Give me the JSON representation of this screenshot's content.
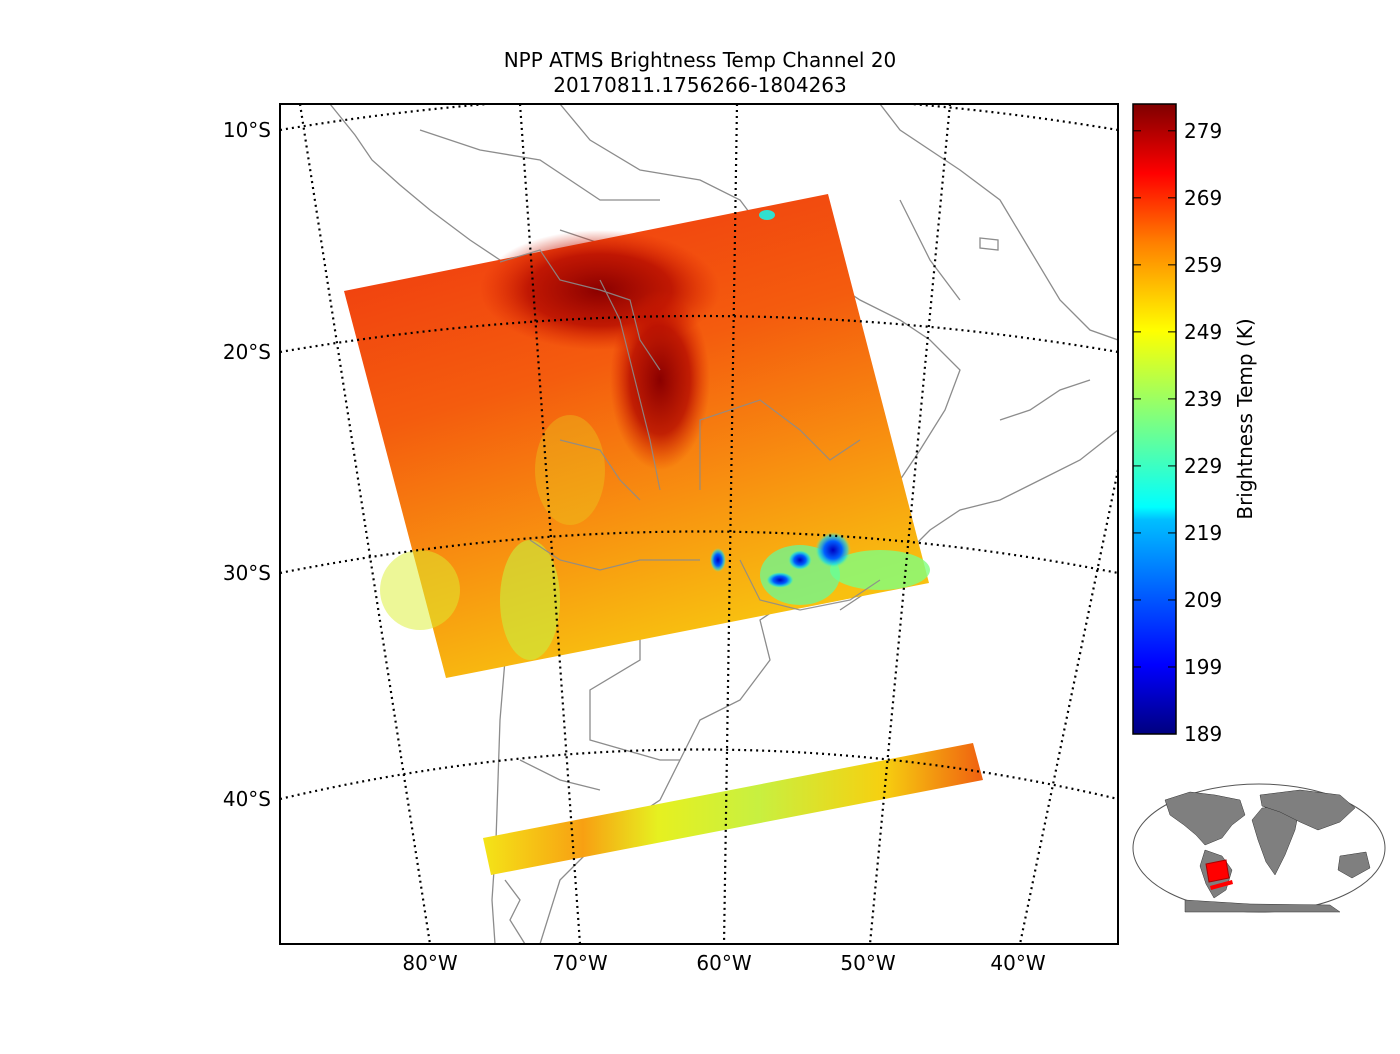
{
  "title": {
    "line1": "NPP ATMS Brightness Temp Channel 20",
    "line2": "20170811.1756266-1804263"
  },
  "map": {
    "lat_labels": [
      "10°S",
      "20°S",
      "30°S",
      "40°S"
    ],
    "lon_labels": [
      "80°W",
      "70°W",
      "60°W",
      "50°W",
      "40°W"
    ]
  },
  "colorbar": {
    "label": "Brightness Temp (K)",
    "ticks": [
      "279",
      "269",
      "259",
      "249",
      "239",
      "229",
      "219",
      "209",
      "199",
      "189"
    ],
    "min": 189,
    "max": 283,
    "colormap": [
      "#00007f",
      "#0000ff",
      "#007fff",
      "#00ffff",
      "#7fff7f",
      "#ffff00",
      "#ff7f00",
      "#ff0000",
      "#7f0000"
    ]
  },
  "inset": {
    "land_color": "#7f7f7f",
    "swath_color": "#ff0000"
  }
}
